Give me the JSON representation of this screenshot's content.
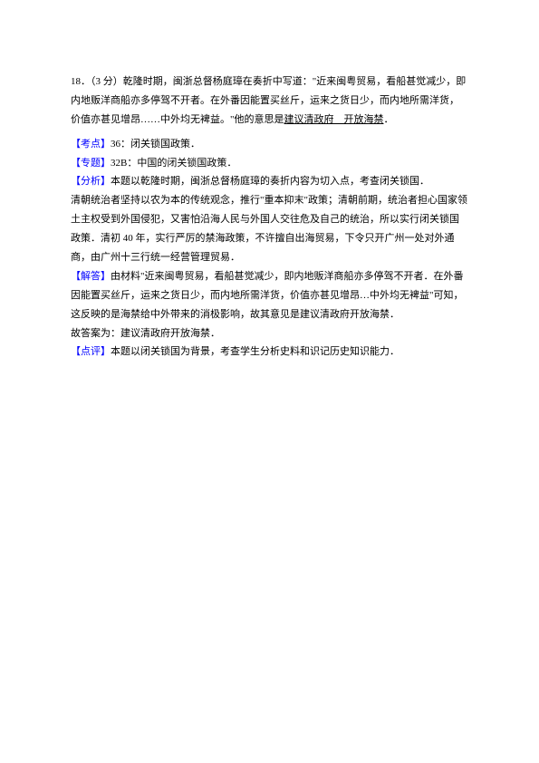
{
  "question": {
    "number": "18．",
    "points": "（3 分）",
    "stem_pre": "乾隆时期，闽浙总督杨庭璋在奏折中写道：\"近来闽粤贸易，看船甚觉减少，即内地贩洋商船亦多停驾不开者。在外番因能置买丝斤，运来之货日少，而内地所需洋货，价值亦甚见增昂……中外均无裨益。\"他的意思是",
    "underlined": "建议清政府　开放海禁",
    "stem_post": "．"
  },
  "kaodian": {
    "label": "【考点】",
    "text": "36：闭关锁国政策．"
  },
  "zhuanti": {
    "label": "【专题】",
    "text": "32B：中国的闭关锁国政策．"
  },
  "fenxi": {
    "label": "【分析】",
    "p1": "本题以乾隆时期，闽浙总督杨庭璋的奏折内容为切入点，考查闭关锁国．",
    "p2": "清朝统治者坚持以农为本的传统观念，推行\"重本抑末\"政策；清朝前期，统治者担心国家领土主权受到外国侵犯，又害怕沿海人民与外国人交往危及自己的统治，所以实行闭关锁国政策．清初 40 年，实行严厉的禁海政策，不许擅自出海贸易，下令只开广州一处对外通商，由广州十三行统一经营管理贸易．"
  },
  "jieda": {
    "label": "【解答】",
    "p1": "由材料\"近来闽粤贸易，看船甚觉减少，即内地贩洋商船亦多停驾不开者．在外番因能置买丝斤，运来之货日少，而内地所需洋货，价值亦甚见增昂…中外均无裨益\"可知，这反映的是海禁给中外带来的消极影响，故其意见是建议清政府开放海禁．",
    "p2": "故答案为：建议清政府开放海禁．"
  },
  "dianping": {
    "label": "【点评】",
    "text": "本题以闭关锁国为背景，考查学生分析史料和识记历史知识能力．"
  }
}
